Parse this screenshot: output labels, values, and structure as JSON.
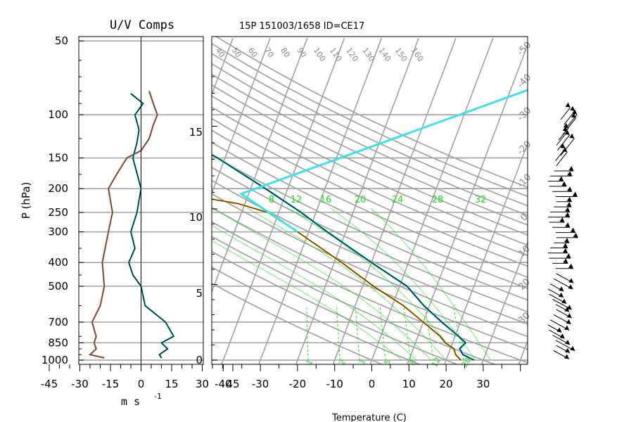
{
  "header": {
    "uv_title": "U/V Comps",
    "sounding_title": "15P 151003/1658 ID=CE17"
  },
  "uv_panel": {
    "ylabel": "P (hPa)",
    "xlabel": "m s",
    "xlabel_sup": "-1",
    "pressure_ticks": [
      "50",
      "100",
      "150",
      "200",
      "250",
      "300",
      "400",
      "500",
      "700",
      "850",
      "1000"
    ],
    "x_ticks": [
      "-45",
      "-30",
      "-15",
      "0",
      "15",
      "30",
      "45"
    ]
  },
  "skewt_panel": {
    "xlabel": "Temperature (C)",
    "x_ticks": [
      "-40",
      "-30",
      "-20",
      "-10",
      "0",
      "10",
      "20",
      "30"
    ],
    "height_ticks": [
      "0",
      "5",
      "10",
      "15"
    ],
    "theta_labels": [
      "40",
      "50",
      "60",
      "70",
      "80",
      "90",
      "100",
      "110",
      "120",
      "130",
      "140",
      "150",
      "160"
    ],
    "temp_labels_right": [
      "-50",
      "-40",
      "-30",
      "-20",
      "-10",
      "0",
      "10",
      "20",
      "30"
    ],
    "mixing_ratio_labels": [
      "8",
      "12",
      "16",
      "20",
      "24",
      "28",
      "32"
    ],
    "mixing_ratio_bottom": [
      "1",
      "2",
      "3",
      "5",
      "8",
      "12",
      "20"
    ]
  },
  "colors": {
    "grid": "#a0a0a0",
    "temperature": "#f5a623",
    "dewpoint": "#40e0e8",
    "profile": "#000000",
    "u_wind": "#2b2bb0",
    "mixing_ratio": "#22dd22"
  },
  "chart_data": [
    {
      "type": "line",
      "title": "U/V Comps",
      "ylabel": "P (hPa)",
      "xlabel": "m s -1",
      "xlim": [
        -50,
        50
      ],
      "ylim": [
        1000,
        50
      ],
      "y_scale": "log",
      "series": [
        {
          "values": [
            {
              "p": 980,
              "v": -18
            },
            {
              "p": 950,
              "v": -25
            },
            {
              "p": 900,
              "v": -22
            },
            {
              "p": 850,
              "v": -23
            },
            {
              "p": 800,
              "v": -22
            },
            {
              "p": 700,
              "v": -24
            },
            {
              "p": 600,
              "v": -20
            },
            {
              "p": 500,
              "v": -18
            },
            {
              "p": 400,
              "v": -19
            },
            {
              "p": 300,
              "v": -16
            },
            {
              "p": 250,
              "v": -14
            },
            {
              "p": 200,
              "v": -16
            },
            {
              "p": 175,
              "v": -12
            },
            {
              "p": 150,
              "v": -7
            },
            {
              "p": 140,
              "v": 0
            },
            {
              "p": 125,
              "v": 4
            },
            {
              "p": 110,
              "v": 6
            },
            {
              "p": 100,
              "v": 8
            },
            {
              "p": 90,
              "v": 6
            },
            {
              "p": 80,
              "v": 4
            }
          ]
        },
        {
          "values": [
            {
              "p": 980,
              "v": 10
            },
            {
              "p": 950,
              "v": 9
            },
            {
              "p": 900,
              "v": 13
            },
            {
              "p": 850,
              "v": 10
            },
            {
              "p": 800,
              "v": 16
            },
            {
              "p": 700,
              "v": 12
            },
            {
              "p": 600,
              "v": 2
            },
            {
              "p": 500,
              "v": 0
            },
            {
              "p": 450,
              "v": -4
            },
            {
              "p": 400,
              "v": -6
            },
            {
              "p": 350,
              "v": -3
            },
            {
              "p": 300,
              "v": -5
            },
            {
              "p": 250,
              "v": -2
            },
            {
              "p": 200,
              "v": 0
            },
            {
              "p": 150,
              "v": -4
            },
            {
              "p": 130,
              "v": -2
            },
            {
              "p": 115,
              "v": -1
            },
            {
              "p": 100,
              "v": -3
            },
            {
              "p": 90,
              "v": 1
            },
            {
              "p": 82,
              "v": -5
            }
          ]
        }
      ]
    },
    {
      "type": "line",
      "title": "15P 151003/1658 ID=CE17",
      "xlabel": "Temperature (C)",
      "xlim": [
        -40,
        40
      ],
      "ylim": [
        1000,
        100
      ],
      "y_scale": "log",
      "series": [
        {
          "values": [
            {
              "p": 1000,
              "t": 27.5
            },
            {
              "p": 950,
              "t": 24.0
            },
            {
              "p": 900,
              "t": 22.5
            },
            {
              "p": 850,
              "t": 23.5
            },
            {
              "p": 800,
              "t": 21.0
            },
            {
              "p": 700,
              "t": 15.0
            },
            {
              "p": 600,
              "t": 8.5
            },
            {
              "p": 500,
              "t": 2.0
            },
            {
              "p": 400,
              "t": -10.0
            },
            {
              "p": 300,
              "t": -25.0
            },
            {
              "p": 250,
              "t": -34.0
            },
            {
              "p": 200,
              "t": -46.0
            },
            {
              "p": 150,
              "t": -62.0
            },
            {
              "p": 120,
              "t": -76.0
            },
            {
              "p": 100,
              "t": -80.0
            },
            {
              "p": 90,
              "t": -75.0
            },
            {
              "p": 80,
              "t": -72.0
            }
          ]
        },
        {
          "values": [
            {
              "p": 1000,
              "t": 24.0
            },
            {
              "p": 950,
              "t": 22.0
            },
            {
              "p": 900,
              "t": 21.0
            },
            {
              "p": 850,
              "t": 18.0
            },
            {
              "p": 800,
              "t": 16.0
            },
            {
              "p": 700,
              "t": 10.0
            },
            {
              "p": 600,
              "t": 3.0
            },
            {
              "p": 500,
              "t": -7.0
            },
            {
              "p": 400,
              "t": -18.0
            },
            {
              "p": 300,
              "t": -33.0
            },
            {
              "p": 250,
              "t": -43.0
            },
            {
              "p": 230,
              "t": -52.0
            },
            {
              "p": 220,
              "t": -60.0
            }
          ]
        }
      ]
    }
  ]
}
